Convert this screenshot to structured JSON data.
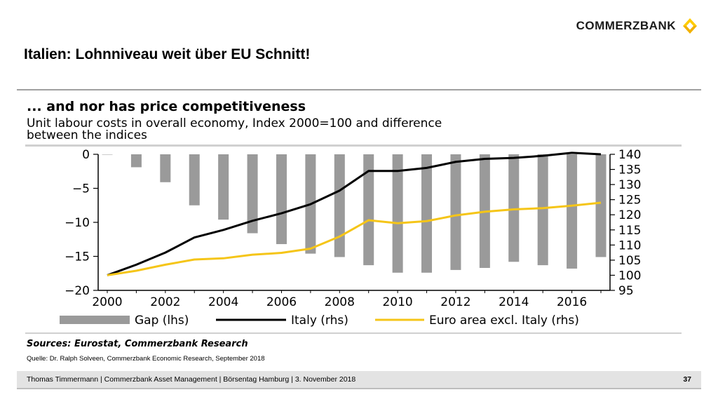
{
  "brand": {
    "name": "COMMERZBANK",
    "logo_color": "#FFCC00"
  },
  "slide": {
    "title": "Italien: Lohnniveau weit über EU Schnitt!",
    "source_note": "Quelle: Dr. Ralph Solveen, Commerzbank Economic Research, September 2018"
  },
  "footer": {
    "text": "Thomas Timmermann | Commerzbank Asset Management | Börsentag Hamburg | 3. November 2018",
    "page": "37"
  },
  "chart_data": {
    "type": "bar",
    "title": "... and nor has price competitiveness",
    "subtitle_lines": [
      "Unit labour costs in overall economy, Index 2000=100 and difference",
      "between the indices"
    ],
    "sources": "Sources: Eurostat, Commerzbank Research",
    "x": [
      2000,
      2001,
      2002,
      2003,
      2004,
      2005,
      2006,
      2007,
      2008,
      2009,
      2010,
      2011,
      2012,
      2013,
      2014,
      2015,
      2016,
      2017
    ],
    "x_tick_labels": [
      "2000",
      "2002",
      "2004",
      "2006",
      "2008",
      "2010",
      "2012",
      "2014",
      "2016"
    ],
    "x_ticks": [
      2000,
      2002,
      2004,
      2006,
      2008,
      2010,
      2012,
      2014,
      2016
    ],
    "y_left": {
      "ylim": [
        -20,
        0
      ],
      "ticks": [
        0,
        -5,
        -10,
        -15,
        -20
      ],
      "tick_labels": [
        "0",
        "−5",
        "−10",
        "−15",
        "−20"
      ]
    },
    "y_right": {
      "ylim": [
        95,
        140
      ],
      "ticks": [
        140,
        135,
        130,
        125,
        120,
        115,
        110,
        105,
        100,
        95
      ],
      "tick_labels": [
        "140",
        "135",
        "130",
        "125",
        "120",
        "115",
        "110",
        "105",
        "100",
        "95"
      ]
    },
    "series": [
      {
        "name": "Gap (lhs)",
        "kind": "bar",
        "axis": "left",
        "color": "#9a9a9a",
        "values": [
          0,
          -1.9,
          -4.1,
          -7.5,
          -9.6,
          -11.6,
          -13.2,
          -14.6,
          -15.1,
          -16.3,
          -17.4,
          -17.4,
          -17.0,
          -16.7,
          -15.8,
          -16.3,
          -16.8,
          -15.1
        ]
      },
      {
        "name": "Italy (rhs)",
        "kind": "line",
        "axis": "right",
        "color": "#000000",
        "values": [
          100,
          103.5,
          107.5,
          112.5,
          115,
          118,
          120.5,
          123.5,
          128,
          134.5,
          134.5,
          135.5,
          137.5,
          138.5,
          138.8,
          139.5,
          140.5,
          140
        ]
      },
      {
        "name": "Euro area excl. Italy (rhs)",
        "kind": "line",
        "axis": "right",
        "color": "#F5C518",
        "values": [
          100,
          101.5,
          103.5,
          105.2,
          105.6,
          106.8,
          107.4,
          108.8,
          112.8,
          118.2,
          117.2,
          117.9,
          119.8,
          121.0,
          121.8,
          122.2,
          123.0,
          124.0
        ]
      }
    ]
  }
}
